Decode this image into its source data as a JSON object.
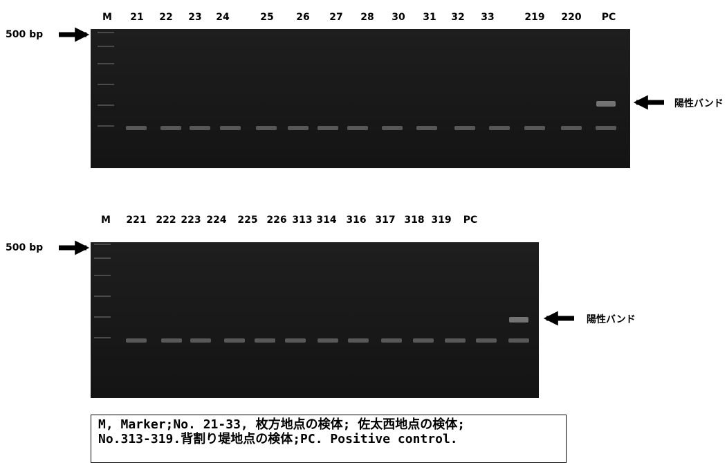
{
  "gels": [
    {
      "lanes": [
        "M",
        "21",
        "22",
        "23",
        "24",
        "25",
        "26",
        "27",
        "28",
        "30",
        "31",
        "32",
        "33",
        "219",
        "220",
        "PC"
      ],
      "marker_label": "500 bp",
      "band_label": "陽性バンド"
    },
    {
      "lanes": [
        "M",
        "221",
        "222",
        "223",
        "224",
        "225",
        "226",
        "313",
        "314",
        "316",
        "317",
        "318",
        "319",
        "PC"
      ],
      "marker_label": "500 bp",
      "band_label": "陽性バンド"
    }
  ],
  "caption": {
    "lines": [
      "M, Marker;No. 21-33, 枚方地点の検体; 佐太西地点の検体;",
      "No.313-319.背割り堤地点の検体;PC. Positive control."
    ]
  }
}
